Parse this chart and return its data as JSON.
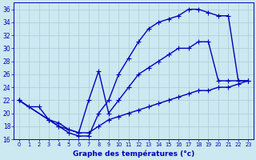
{
  "xlabel": "Graphe des températures (°c)",
  "ylim": [
    16,
    37
  ],
  "yticks": [
    16,
    18,
    20,
    22,
    24,
    26,
    28,
    30,
    32,
    34,
    36
  ],
  "bg_color": "#cce8f0",
  "grid_color": "#aaccd8",
  "line_color": "#0000bb",
  "line_width": 1.0,
  "marker": "+",
  "marker_size": 4,
  "marker_lw": 0.8,
  "curve1_x": [
    0,
    1,
    2,
    3,
    4,
    5,
    6,
    7,
    8,
    9,
    10,
    11,
    12,
    13,
    14,
    15,
    16,
    17,
    18,
    19,
    20,
    21,
    22,
    23
  ],
  "curve1_y": [
    22,
    21,
    21,
    19,
    18,
    17,
    16.5,
    16.5,
    20,
    22,
    26,
    28.5,
    31,
    33,
    34,
    34.5,
    35,
    36,
    36,
    35.5,
    35,
    35,
    25,
    25
  ],
  "curve2_x": [
    0,
    3,
    4,
    5,
    6,
    7,
    8,
    9,
    10,
    11,
    12,
    13,
    14,
    15,
    16,
    17,
    18,
    19,
    20,
    21,
    22,
    23
  ],
  "curve2_y": [
    22,
    19,
    18,
    17.5,
    17,
    22,
    26.5,
    20,
    22,
    24,
    26,
    27,
    28,
    29,
    30,
    30,
    31,
    31,
    25,
    25,
    25,
    25
  ],
  "curve3_x": [
    0,
    3,
    4,
    5,
    6,
    7,
    8,
    9,
    10,
    11,
    12,
    13,
    14,
    15,
    16,
    17,
    18,
    19,
    20,
    21,
    22,
    23
  ],
  "curve3_y": [
    22,
    19,
    18.5,
    17.5,
    17,
    17,
    18,
    19,
    19.5,
    20,
    20.5,
    21,
    21.5,
    22,
    22.5,
    23,
    23.5,
    23.5,
    24,
    24,
    24.5,
    25
  ]
}
